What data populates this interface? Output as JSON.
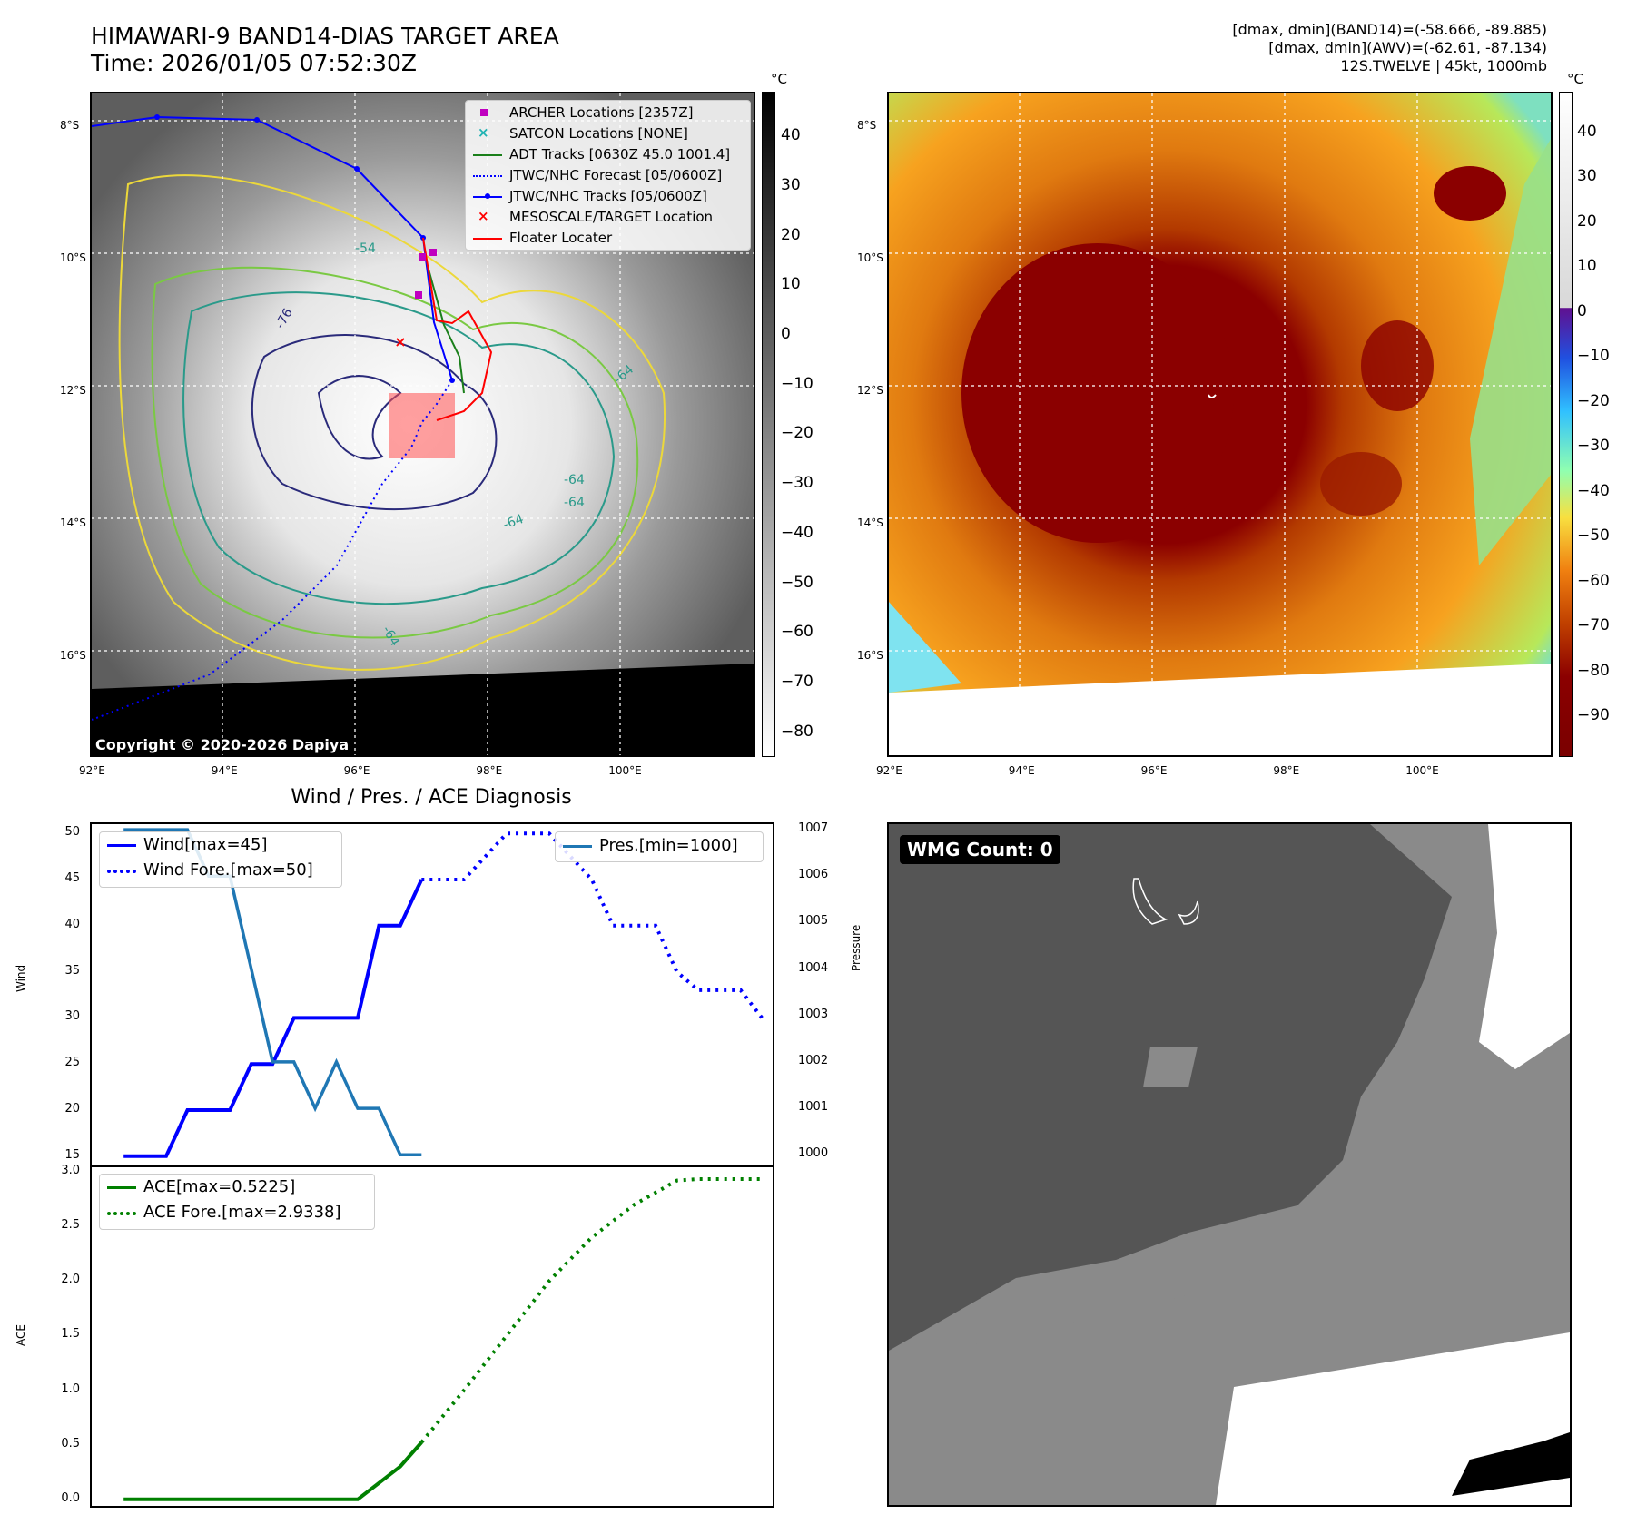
{
  "map1": {
    "title": "HIMAWARI-9 BAND14-DIAS TARGET AREA",
    "time": "Time: 2026/01/05 07:52:30Z",
    "copyright": "Copyright © 2020-2026 Dapiya",
    "legend": [
      {
        "label": "ARCHER Locations [2357Z]",
        "color": "#c000c0",
        "kind": "square"
      },
      {
        "label": "SATCON Locations [NONE]",
        "color": "#1fb3b3",
        "kind": "x"
      },
      {
        "label": "ADT Tracks [0630Z 45.0 1001.4]",
        "color": "#1a7f1a",
        "kind": "line"
      },
      {
        "label": "JTWC/NHC Forecast [05/0600Z]",
        "color": "#0000ff",
        "kind": "dotted"
      },
      {
        "label": "JTWC/NHC Tracks [05/0600Z]",
        "color": "#0000ff",
        "kind": "linedot"
      },
      {
        "label": "MESOSCALE/TARGET Location",
        "color": "#ff0000",
        "kind": "x"
      },
      {
        "label": "Floater Locater",
        "color": "#ff0000",
        "kind": "line"
      }
    ],
    "contour_labels": [
      "-76",
      "-64",
      "-64",
      "-64",
      "-64",
      "-64",
      "-54"
    ],
    "cbar_unit": "°C",
    "cbar_ticks": [
      "40",
      "30",
      "20",
      "10",
      "0",
      "−10",
      "−20",
      "−30",
      "−40",
      "−50",
      "−60",
      "−70",
      "−80"
    ],
    "cbar_values": [
      40,
      30,
      20,
      10,
      0,
      -10,
      -20,
      -30,
      -40,
      -50,
      -60,
      -70,
      -80
    ],
    "cbar_range": [
      -85,
      49
    ]
  },
  "map2": {
    "line1": "[dmax, dmin](BAND14)=(-58.666, -89.885)",
    "line2": "[dmax, dmin](AWV)=(-62.61, -87.134)",
    "line3": "12S.TWELVE | 45kt, 1000mb",
    "cbar_unit": "°C",
    "cbar_ticks": [
      "40",
      "30",
      "20",
      "10",
      "0",
      "−10",
      "−20",
      "−30",
      "−40",
      "−50",
      "−60",
      "−70",
      "−80",
      "−90"
    ],
    "cbar_values": [
      40,
      30,
      20,
      10,
      0,
      -10,
      -20,
      -30,
      -40,
      -50,
      -60,
      -70,
      -80,
      -90
    ],
    "cbar_range": [
      -99,
      49
    ]
  },
  "axes": {
    "lat_labels": [
      "8°S",
      "10°S",
      "12°S",
      "14°S",
      "16°S"
    ],
    "lon_labels": [
      "92°E",
      "94°E",
      "96°E",
      "98°E",
      "100°E"
    ],
    "lats": [
      -8,
      -10,
      -12,
      -14,
      -16
    ],
    "lons": [
      92,
      94,
      96,
      98,
      100
    ],
    "lon_range": [
      92,
      102
    ],
    "lat_range": [
      -7.5,
      -17.5
    ]
  },
  "diag": {
    "title": "Wind / Pres. / ACE Diagnosis",
    "wind_ylabel": "Wind",
    "pres_ylabel": "Pressure",
    "ace_ylabel": "ACE",
    "wind_legend": [
      "Wind[max=45]",
      "Wind Fore.[max=50]"
    ],
    "pres_legend": "Pres.[min=1000]",
    "ace_legend": [
      "ACE[max=0.5225]",
      "ACE Fore.[max=2.9338]"
    ],
    "wind_ticks": [
      "50",
      "45",
      "40",
      "35",
      "30",
      "25",
      "20",
      "15"
    ],
    "pres_ticks": [
      "1007",
      "1006",
      "1005",
      "1004",
      "1003",
      "1002",
      "1001",
      "1000"
    ],
    "ace_ticks": [
      "3.0",
      "2.5",
      "2.0",
      "1.5",
      "1.0",
      "0.5",
      "0.0"
    ]
  },
  "chart_data": [
    {
      "type": "line",
      "title": "Wind / Pres. / ACE Diagnosis",
      "ylabel": "Wind",
      "ylim": [
        14,
        51
      ],
      "xlim": [
        -1.5,
        30.5
      ],
      "series": [
        {
          "name": "Wind[max=45]",
          "style": "solid",
          "color": "#0000ff",
          "x": [
            0,
            1,
            2,
            3,
            4,
            5,
            6,
            7,
            8,
            9,
            10,
            11,
            12,
            13,
            14
          ],
          "values": [
            15,
            15,
            15,
            20,
            20,
            20,
            25,
            25,
            30,
            30,
            30,
            30,
            40,
            40,
            45
          ]
        },
        {
          "name": "Wind Fore.[max=50]",
          "style": "dotted",
          "color": "#0000ff",
          "x": [
            14,
            15,
            16,
            17,
            18,
            19,
            20,
            21,
            22,
            23,
            24,
            25,
            26,
            27,
            28,
            29,
            30
          ],
          "values": [
            45,
            45,
            45,
            47.5,
            50,
            50,
            50,
            47.5,
            45,
            40,
            40,
            40,
            35,
            33,
            33,
            33,
            30
          ]
        }
      ]
    },
    {
      "type": "line",
      "ylabel": "Pressure",
      "ylim": [
        999.77,
        1007.12
      ],
      "series": [
        {
          "name": "Pres.[min=1000]",
          "color": "#1f77b4",
          "x": [
            0,
            1,
            2,
            3,
            4,
            5,
            6,
            7,
            8,
            9,
            10,
            11,
            12,
            13,
            14
          ],
          "values": [
            1007,
            1007,
            1007,
            1007,
            1006,
            1006,
            1004,
            1002,
            1002,
            1001,
            1002,
            1001,
            1001,
            1000,
            1000
          ]
        }
      ]
    },
    {
      "type": "line",
      "ylabel": "ACE",
      "ylim": [
        -0.06,
        3.05
      ],
      "series": [
        {
          "name": "ACE[max=0.5225]",
          "style": "solid",
          "color": "#008000",
          "x": [
            0,
            11,
            13,
            14
          ],
          "values": [
            0,
            0,
            0.3,
            0.5225
          ]
        },
        {
          "name": "ACE Fore.[max=2.9338]",
          "style": "dotted",
          "color": "#008000",
          "x": [
            14,
            16,
            18,
            20,
            22,
            24,
            26,
            27,
            28,
            30
          ],
          "values": [
            0.5225,
            1.0,
            1.5,
            2.0,
            2.4,
            2.7,
            2.92,
            2.9338,
            2.9338,
            2.9338
          ]
        }
      ]
    }
  ],
  "wmg": {
    "label": "WMG Count: 0"
  }
}
